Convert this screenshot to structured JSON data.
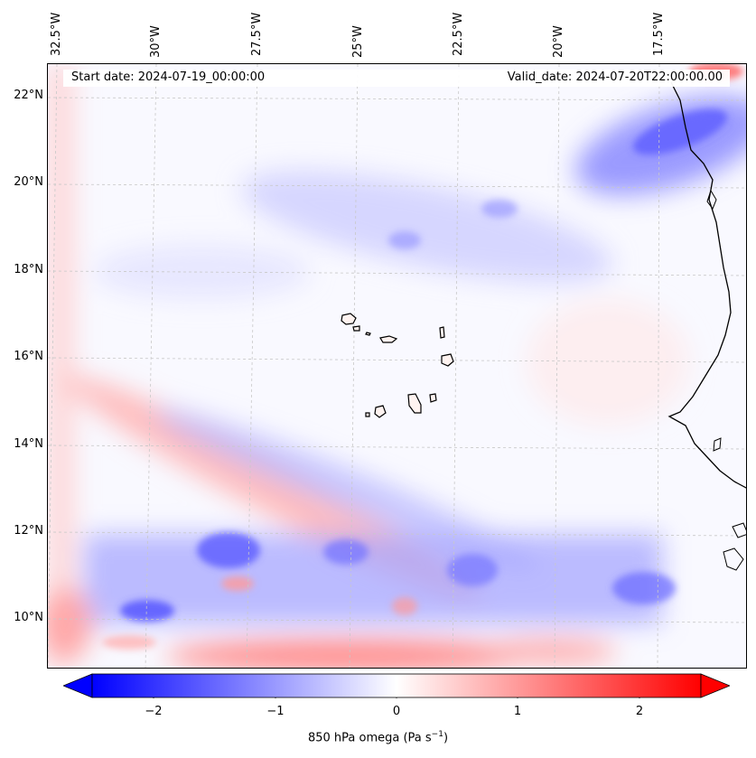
{
  "map": {
    "start_date": "Start date: 2024-07-19_00:00:00",
    "valid_date": "Valid_date: 2024-07-20T22:00:00.00",
    "lon_labels": [
      "32.5°W",
      "30°W",
      "27.5°W",
      "25°W",
      "22.5°W",
      "20°W",
      "17.5°W"
    ],
    "lat_labels": [
      "22°N",
      "20°N",
      "18°N",
      "16°N",
      "14°N",
      "12°N",
      "10°N"
    ],
    "gridlines": "dashed",
    "features": [
      "Cabo Verde islands",
      "West African coastline"
    ]
  },
  "colorbar": {
    "label": "850 hPa omega (Pa s",
    "label_sup": "−1",
    "label_end": ")",
    "ticks": [
      "−2",
      "−1",
      "0",
      "1",
      "2"
    ],
    "range": [
      -2.5,
      2.5
    ],
    "colormap": "bwr",
    "colors": {
      "negative": "#0000ff",
      "zero": "#ffffff",
      "positive": "#ff0000"
    },
    "extend": "both"
  }
}
